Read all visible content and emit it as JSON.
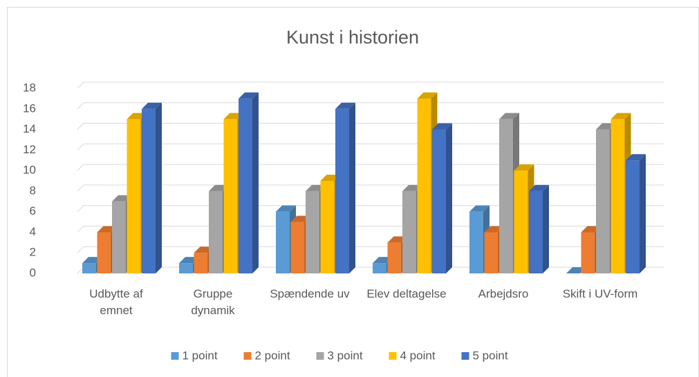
{
  "chart_data": {
    "type": "bar3d",
    "title": "Kunst i historien",
    "categories": [
      "Udbytte af emnet",
      "Gruppe dynamik",
      "Spændende uv",
      "Elev deltagelse",
      "Arbejdsro",
      "Skift i UV-form"
    ],
    "series": [
      {
        "name": "1 point",
        "color": "#5b9bd5",
        "values": [
          1,
          1,
          6,
          1,
          6,
          0
        ]
      },
      {
        "name": "2 point",
        "color": "#ed7d31",
        "values": [
          4,
          2,
          5,
          3,
          4,
          4
        ]
      },
      {
        "name": "3 point",
        "color": "#a5a5a5",
        "values": [
          7,
          8,
          8,
          8,
          15,
          14
        ]
      },
      {
        "name": "4 point",
        "color": "#ffc000",
        "values": [
          15,
          15,
          9,
          17,
          10,
          15
        ]
      },
      {
        "name": "5 point",
        "color": "#4472c4",
        "values": [
          16,
          17,
          16,
          14,
          8,
          11
        ]
      }
    ],
    "ylim": [
      0,
      18
    ],
    "yticks": [
      0,
      2,
      4,
      6,
      8,
      10,
      12,
      14,
      16,
      18
    ],
    "grid": true,
    "legend": "bottom"
  }
}
